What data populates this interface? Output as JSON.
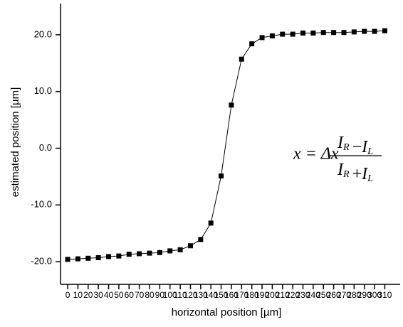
{
  "chart_data": {
    "type": "line",
    "x_label": "horizontal position [µm]",
    "y_label": "estimated position [µm]",
    "x": [
      0,
      10,
      20,
      30,
      40,
      50,
      60,
      70,
      80,
      90,
      100,
      110,
      120,
      130,
      140,
      150,
      160,
      170,
      180,
      190,
      200,
      210,
      220,
      230,
      240,
      250,
      260,
      270,
      280,
      290,
      300,
      310
    ],
    "series": [
      {
        "color": "#000000",
        "values": [
          -19.6,
          -19.5,
          -19.4,
          -19.3,
          -19.1,
          -19.0,
          -18.7,
          -18.6,
          -18.5,
          -18.4,
          -18.1,
          -17.9,
          -17.2,
          -16.1,
          -13.2,
          -4.9,
          7.6,
          15.7,
          18.4,
          19.5,
          19.8,
          20.1,
          20.1,
          20.3,
          20.3,
          20.4,
          20.4,
          20.4,
          20.5,
          20.6,
          20.6,
          20.7
        ]
      }
    ],
    "xlim": [
      -7,
      325
    ],
    "ylim": [
      -24,
      25.5
    ],
    "xticks": [
      0,
      10,
      20,
      30,
      40,
      50,
      60,
      70,
      80,
      90,
      100,
      110,
      120,
      130,
      140,
      150,
      160,
      170,
      180,
      190,
      200,
      210,
      220,
      230,
      240,
      250,
      260,
      270,
      280,
      290,
      300,
      310
    ],
    "yticks": [
      {
        "value": -20,
        "label": "-20.0"
      },
      {
        "value": -10,
        "label": "-10.0"
      },
      {
        "value": 0,
        "label": "0.0"
      },
      {
        "value": 10,
        "label": "10.0"
      },
      {
        "value": 20,
        "label": "20.0"
      }
    ],
    "grid": false,
    "equation": {
      "lhs": "x = Δx",
      "numerator": [
        {
          "base": "I",
          "sub": "R"
        },
        {
          "op": "−"
        },
        {
          "base": "I",
          "sub": "L"
        }
      ],
      "denominator": [
        {
          "base": "I",
          "sub": "R"
        },
        {
          "op": "+"
        },
        {
          "base": "I",
          "sub": "L"
        }
      ]
    }
  }
}
